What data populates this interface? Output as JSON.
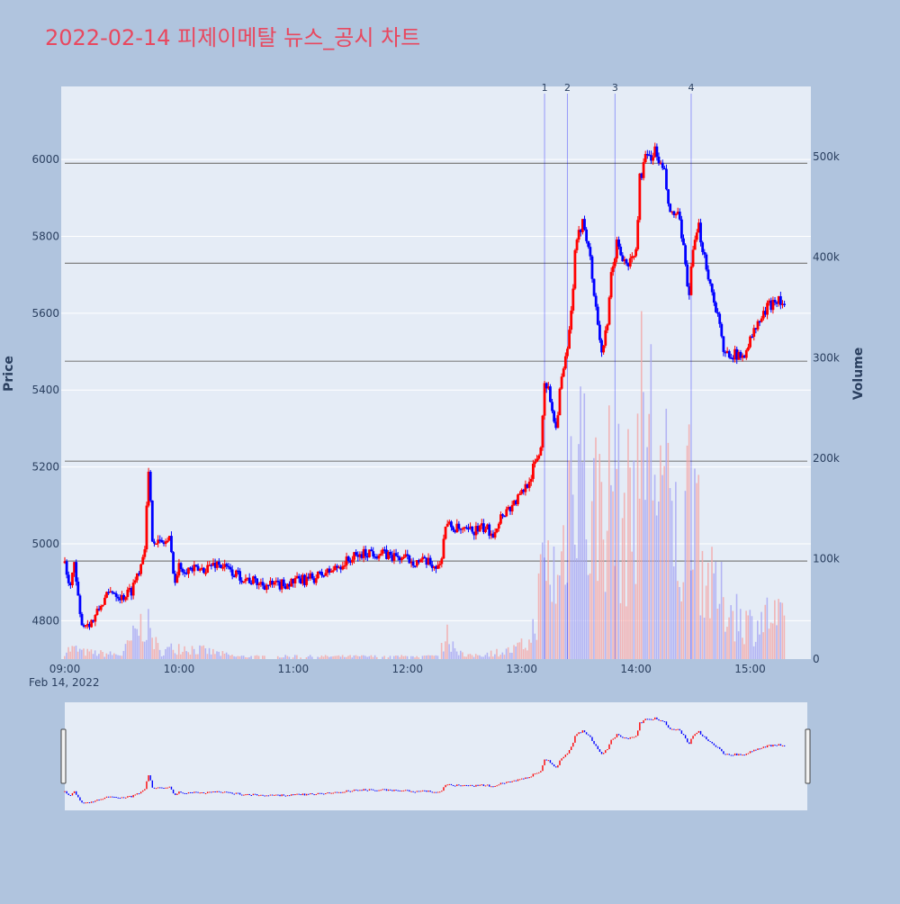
{
  "title": "2022-02-14 피제이메탈 뉴스_공시 차트",
  "colors": {
    "background": "#b0c4de",
    "plot_bg": "#e5ecf6",
    "up": "#ff0000",
    "down": "#0000ff",
    "title": "#e8485f",
    "hline": "#808080",
    "news_line": "#0000ff"
  },
  "chart_data": {
    "type": "candlestick",
    "xlabel": "",
    "ylabel": "Price",
    "y2label": "Volume",
    "x_range": [
      "09:00",
      "15:30"
    ],
    "ylim": [
      4700,
      6190
    ],
    "y2lim": [
      0,
      570000
    ],
    "x_ticks": [
      "09:00",
      "10:00",
      "11:00",
      "12:00",
      "13:00",
      "14:00",
      "15:00"
    ],
    "x_date_label": "Feb 14, 2022",
    "y_ticks": [
      4800,
      5000,
      5200,
      5400,
      5600,
      5800,
      6000
    ],
    "y2_ticks": [
      {
        "value": 0,
        "label": "0"
      },
      {
        "value": 100000,
        "label": "100k"
      },
      {
        "value": 200000,
        "label": "200k"
      },
      {
        "value": 300000,
        "label": "300k"
      },
      {
        "value": 400000,
        "label": "400k"
      },
      {
        "value": 500000,
        "label": "500k"
      }
    ],
    "hlines": [
      4955,
      5215,
      5475,
      5730,
      5990
    ],
    "news_markers": [
      {
        "label": "1",
        "time": "13:12"
      },
      {
        "label": "2",
        "time": "13:24"
      },
      {
        "label": "3",
        "time": "13:49"
      },
      {
        "label": "4",
        "time": "14:29"
      }
    ],
    "price_path": [
      [
        "09:00",
        4950
      ],
      [
        "09:02",
        4890
      ],
      [
        "09:05",
        4940
      ],
      [
        "09:08",
        4810
      ],
      [
        "09:10",
        4790
      ],
      [
        "09:15",
        4800
      ],
      [
        "09:20",
        4850
      ],
      [
        "09:25",
        4880
      ],
      [
        "09:30",
        4860
      ],
      [
        "09:35",
        4880
      ],
      [
        "09:40",
        4950
      ],
      [
        "09:42",
        5000
      ],
      [
        "09:44",
        5180
      ],
      [
        "09:46",
        5020
      ],
      [
        "09:50",
        5000
      ],
      [
        "09:55",
        5010
      ],
      [
        "09:58",
        4900
      ],
      [
        "10:00",
        4940
      ],
      [
        "10:10",
        4930
      ],
      [
        "10:20",
        4950
      ],
      [
        "10:30",
        4920
      ],
      [
        "10:40",
        4900
      ],
      [
        "10:50",
        4890
      ],
      [
        "11:00",
        4900
      ],
      [
        "11:10",
        4910
      ],
      [
        "11:20",
        4930
      ],
      [
        "11:30",
        4960
      ],
      [
        "11:40",
        4980
      ],
      [
        "11:50",
        4970
      ],
      [
        "12:00",
        4960
      ],
      [
        "12:10",
        4950
      ],
      [
        "12:17",
        4940
      ],
      [
        "12:20",
        5050
      ],
      [
        "12:30",
        5030
      ],
      [
        "12:40",
        5040
      ],
      [
        "12:45",
        5030
      ],
      [
        "12:50",
        5080
      ],
      [
        "12:55",
        5100
      ],
      [
        "13:00",
        5130
      ],
      [
        "13:05",
        5180
      ],
      [
        "13:10",
        5250
      ],
      [
        "13:12",
        5430
      ],
      [
        "13:15",
        5380
      ],
      [
        "13:18",
        5300
      ],
      [
        "13:20",
        5400
      ],
      [
        "13:24",
        5500
      ],
      [
        "13:26",
        5600
      ],
      [
        "13:28",
        5750
      ],
      [
        "13:30",
        5800
      ],
      [
        "13:32",
        5850
      ],
      [
        "13:35",
        5780
      ],
      [
        "13:38",
        5650
      ],
      [
        "13:42",
        5500
      ],
      [
        "13:45",
        5560
      ],
      [
        "13:47",
        5700
      ],
      [
        "13:50",
        5780
      ],
      [
        "13:55",
        5720
      ],
      [
        "14:00",
        5760
      ],
      [
        "14:02",
        5950
      ],
      [
        "14:05",
        6000
      ],
      [
        "14:10",
        6020
      ],
      [
        "14:15",
        5960
      ],
      [
        "14:18",
        5850
      ],
      [
        "14:22",
        5860
      ],
      [
        "14:25",
        5760
      ],
      [
        "14:28",
        5650
      ],
      [
        "14:30",
        5760
      ],
      [
        "14:33",
        5820
      ],
      [
        "14:36",
        5750
      ],
      [
        "14:40",
        5650
      ],
      [
        "14:43",
        5600
      ],
      [
        "14:46",
        5490
      ],
      [
        "14:50",
        5500
      ],
      [
        "14:55",
        5480
      ],
      [
        "15:00",
        5530
      ],
      [
        "15:05",
        5580
      ],
      [
        "15:10",
        5620
      ],
      [
        "15:14",
        5640
      ],
      [
        "15:18",
        5620
      ]
    ],
    "volume_profile": [
      [
        "09:00",
        10000
      ],
      [
        "09:05",
        12000
      ],
      [
        "09:10",
        8000
      ],
      [
        "09:30",
        5000
      ],
      [
        "09:42",
        45000
      ],
      [
        "09:50",
        8000
      ],
      [
        "10:00",
        15000
      ],
      [
        "10:30",
        3000
      ],
      [
        "11:30",
        3000
      ],
      [
        "12:17",
        3000
      ],
      [
        "12:20",
        30000
      ],
      [
        "12:30",
        3000
      ],
      [
        "12:55",
        10000
      ],
      [
        "13:05",
        20000
      ],
      [
        "13:12",
        110000
      ],
      [
        "13:20",
        90000
      ],
      [
        "13:26",
        220000
      ],
      [
        "13:30",
        300000
      ],
      [
        "13:35",
        160000
      ],
      [
        "13:45",
        200000
      ],
      [
        "13:50",
        180000
      ],
      [
        "13:55",
        150000
      ],
      [
        "14:00",
        230000
      ],
      [
        "14:05",
        280000
      ],
      [
        "14:10",
        240000
      ],
      [
        "14:20",
        150000
      ],
      [
        "14:25",
        120000
      ],
      [
        "14:30",
        260000
      ],
      [
        "14:35",
        110000
      ],
      [
        "14:40",
        80000
      ],
      [
        "14:50",
        60000
      ],
      [
        "15:00",
        40000
      ],
      [
        "15:10",
        50000
      ],
      [
        "15:18",
        40000
      ]
    ]
  }
}
